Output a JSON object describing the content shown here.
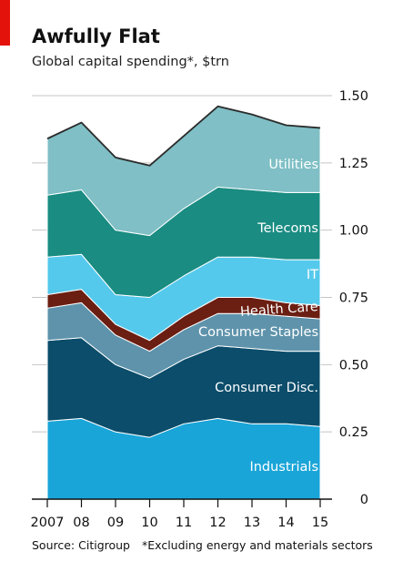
{
  "chart_data": {
    "type": "area",
    "stacked": true,
    "title": "Awfully Flat",
    "subtitle": "Global capital spending*, $trn",
    "source": "Source: Citigroup",
    "footnote": "*Excluding energy and materials sectors",
    "x": [
      2007,
      2008,
      2009,
      2010,
      2011,
      2012,
      2013,
      2014,
      2015
    ],
    "x_tick_labels": [
      "2007",
      "08",
      "09",
      "10",
      "11",
      "12",
      "13",
      "14",
      "15"
    ],
    "ylim": [
      0,
      1.5
    ],
    "y_ticks": [
      0,
      0.25,
      0.5,
      0.75,
      1.0,
      1.25,
      1.5
    ],
    "y_tick_labels": [
      "0",
      "0.25",
      "0.50",
      "0.75",
      "1.00",
      "1.25",
      "1.50"
    ],
    "y_axis_side": "right",
    "grid": "horizontal",
    "series": [
      {
        "name": "Industrials",
        "color": "#1aa5d8",
        "values": [
          0.29,
          0.3,
          0.25,
          0.23,
          0.28,
          0.3,
          0.28,
          0.28,
          0.27
        ]
      },
      {
        "name": "Consumer Disc.",
        "color": "#0b4d6b",
        "values": [
          0.3,
          0.3,
          0.25,
          0.22,
          0.24,
          0.27,
          0.28,
          0.27,
          0.28
        ]
      },
      {
        "name": "Consumer Staples",
        "color": "#5e93ab",
        "values": [
          0.12,
          0.13,
          0.11,
          0.1,
          0.11,
          0.12,
          0.13,
          0.13,
          0.12
        ]
      },
      {
        "name": "Health Care",
        "color": "#6b1e12",
        "values": [
          0.05,
          0.05,
          0.04,
          0.04,
          0.05,
          0.06,
          0.06,
          0.05,
          0.05
        ]
      },
      {
        "name": "IT",
        "color": "#55c9ec",
        "values": [
          0.14,
          0.13,
          0.11,
          0.16,
          0.15,
          0.15,
          0.15,
          0.16,
          0.17
        ]
      },
      {
        "name": "Telecoms",
        "color": "#1a8c82",
        "values": [
          0.23,
          0.24,
          0.24,
          0.23,
          0.25,
          0.26,
          0.25,
          0.25,
          0.25
        ]
      },
      {
        "name": "Utilities",
        "color": "#7fbfc5",
        "values": [
          0.21,
          0.25,
          0.27,
          0.26,
          0.27,
          0.3,
          0.28,
          0.25,
          0.24
        ]
      }
    ],
    "series_label_color": "#ffffff"
  },
  "colors": {
    "accent": "#e3120b",
    "gridline": "#c4c4c4",
    "axis": "#111111",
    "top_line": "#2b2b2b"
  }
}
